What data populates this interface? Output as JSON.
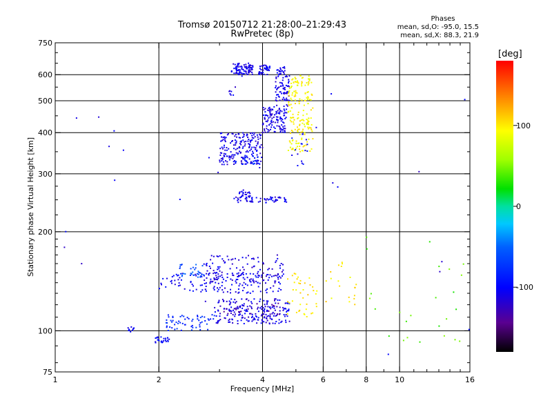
{
  "chart_data": {
    "type": "scatter",
    "title": "Tromsø 20150712 21:28:00–21:29:43",
    "subtitle": "RwPretec (8p)",
    "xlabel": "Frequency [MHz]",
    "ylabel": "Stationary phase Virtual Height [km]",
    "x_scale": "log",
    "y_scale": "log",
    "xlim": [
      1,
      16
    ],
    "ylim": [
      75,
      750
    ],
    "x_ticks": [
      1,
      2,
      4,
      6,
      8,
      10,
      16
    ],
    "x_tick_labels": [
      "1",
      "2",
      "4",
      "6",
      "8",
      "10",
      "16"
    ],
    "x_minor_ticks": [
      3,
      5,
      7,
      9,
      11,
      12,
      13,
      14,
      15
    ],
    "x_gridlines": [
      2,
      4,
      6,
      8,
      10
    ],
    "y_ticks": [
      75,
      100,
      200,
      300,
      400,
      500,
      600,
      750
    ],
    "y_tick_labels": [
      "75",
      "100",
      "200",
      "300",
      "400",
      "500",
      "600",
      "750"
    ],
    "y_minor_ticks": [
      80,
      90,
      110,
      120,
      130,
      140,
      150,
      160,
      170,
      180,
      190,
      225,
      250,
      275,
      350,
      450,
      550,
      650,
      700
    ],
    "y_gridlines": [
      100,
      200,
      300,
      400,
      500,
      600
    ],
    "grid": true,
    "stats": {
      "heading": "Phases",
      "line_o": "mean, sd,O:  -95.0, 15.5",
      "line_x": "mean, sd,X:   88.3, 21.9"
    },
    "colorbar": {
      "label": "[deg]",
      "range": [
        -180,
        180
      ],
      "ticks": [
        100,
        0,
        -100
      ],
      "tick_labels": [
        "100",
        "0",
        "-100"
      ]
    },
    "clusters": [
      {
        "f": [
          3.25,
          3.75
        ],
        "h": [
          600,
          650
        ],
        "phase": -110,
        "n": 90
      },
      {
        "f": [
          3.9,
          4.2
        ],
        "h": [
          600,
          645
        ],
        "phase": -105,
        "n": 40
      },
      {
        "f": [
          4.4,
          4.65
        ],
        "h": [
          600,
          635
        ],
        "phase": -108,
        "n": 20
      },
      {
        "f": [
          3.2,
          3.3
        ],
        "h": [
          515,
          540
        ],
        "phase": -110,
        "n": 6
      },
      {
        "f": [
          4.0,
          4.7
        ],
        "h": [
          400,
          480
        ],
        "phase": -110,
        "n": 120
      },
      {
        "f": [
          4.35,
          4.8
        ],
        "h": [
          480,
          600
        ],
        "phase": -110,
        "n": 70
      },
      {
        "f": [
          4.75,
          5.6
        ],
        "h": [
          350,
          600
        ],
        "phase": 95,
        "n": 180
      },
      {
        "f": [
          4.8,
          5.4
        ],
        "h": [
          320,
          400
        ],
        "phase": -100,
        "n": 15
      },
      {
        "f": [
          3.0,
          4.0
        ],
        "h": [
          320,
          400
        ],
        "phase": -110,
        "n": 200
      },
      {
        "f": [
          3.3,
          3.9
        ],
        "h": [
          320,
          345
        ],
        "phase": -80,
        "n": 20
      },
      {
        "f": [
          3.3,
          4.7
        ],
        "h": [
          245,
          255
        ],
        "phase": -110,
        "n": 60
      },
      {
        "f": [
          3.4,
          3.7
        ],
        "h": [
          255,
          265
        ],
        "phase": -105,
        "n": 20
      },
      {
        "f": [
          2.0,
          4.6
        ],
        "h": [
          130,
          150
        ],
        "phase": -105,
        "n": 160
      },
      {
        "f": [
          2.3,
          2.7
        ],
        "h": [
          145,
          160
        ],
        "phase": -60,
        "n": 30
      },
      {
        "f": [
          2.7,
          4.7
        ],
        "h": [
          140,
          170
        ],
        "phase": -115,
        "n": 110
      },
      {
        "f": [
          2.9,
          4.8
        ],
        "h": [
          105,
          125
        ],
        "phase": -110,
        "n": 200
      },
      {
        "f": [
          3.0,
          4.6
        ],
        "h": [
          112,
          122
        ],
        "phase": -130,
        "n": 40
      },
      {
        "f": [
          2.1,
          2.9
        ],
        "h": [
          100,
          112
        ],
        "phase": -80,
        "n": 60
      },
      {
        "f": [
          1.95,
          2.15
        ],
        "h": [
          92,
          96
        ],
        "phase": -100,
        "n": 25
      },
      {
        "f": [
          1.62,
          1.7
        ],
        "h": [
          99,
          103
        ],
        "phase": -100,
        "n": 10
      },
      {
        "f": [
          4.7,
          5.8
        ],
        "h": [
          110,
          150
        ],
        "phase": 100,
        "n": 40
      },
      {
        "f": [
          6.0,
          7.5
        ],
        "h": [
          120,
          165
        ],
        "phase": 100,
        "n": 20
      },
      {
        "f": [
          8.0,
          16
        ],
        "h": [
          90,
          200
        ],
        "phase": 40,
        "n": 25
      },
      {
        "f": [
          1.0,
          16
        ],
        "h": [
          75,
          650
        ],
        "phase": -110,
        "n": 30
      }
    ]
  }
}
